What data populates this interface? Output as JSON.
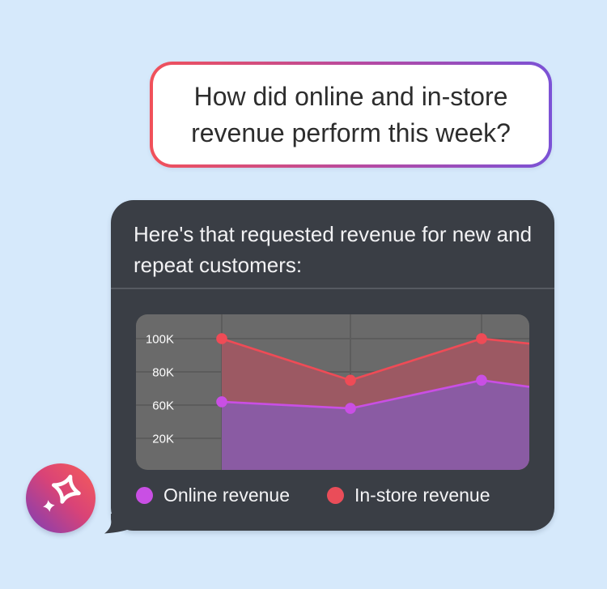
{
  "background_color": "#d6e9fb",
  "user_bubble": {
    "text": "How did online and in-store revenue perform this week?",
    "text_color": "#2d2d2d",
    "background": "#ffffff",
    "border_gradient": [
      "#f1515a",
      "#b44aa4",
      "#7b52d6"
    ]
  },
  "assistant_bubble": {
    "background": "#3a3e45",
    "text_color": "#f2f2f4",
    "intro": "Here's that requested revenue for new and repeat customers:",
    "legend": [
      {
        "label": "Online revenue",
        "color": "#c94fe4"
      },
      {
        "label": "In-store revenue",
        "color": "#ea4d59"
      }
    ]
  },
  "avatar": {
    "icon": "sparkle-star-icon",
    "gradient": [
      "#f35a5c",
      "#d94377",
      "#8a3fae"
    ]
  },
  "chart_data": {
    "type": "area",
    "title": "",
    "y_tick_labels": [
      "100K",
      "80K",
      "60K",
      "20K"
    ],
    "x_tick_labels": [
      "",
      "",
      ""
    ],
    "unit": "K",
    "ylim": [
      0,
      110
    ],
    "grid": true,
    "grid_color": "#5c5c5c",
    "plot_background": "#6a6a6a",
    "axis_label_color": "#ffffff",
    "legend_position": "bottom",
    "series": [
      {
        "name": "In-store revenue",
        "line_color": "#ef4b56",
        "marker_color": "#ef4b56",
        "fill_color": "#9c5963",
        "values_k": [
          100,
          75,
          100,
          97
        ]
      },
      {
        "name": "Online revenue",
        "line_color": "#c94fe4",
        "marker_color": "#c94fe4",
        "fill_color": "#8a5ba3",
        "values_k": [
          62,
          58,
          75,
          71
        ]
      }
    ]
  }
}
